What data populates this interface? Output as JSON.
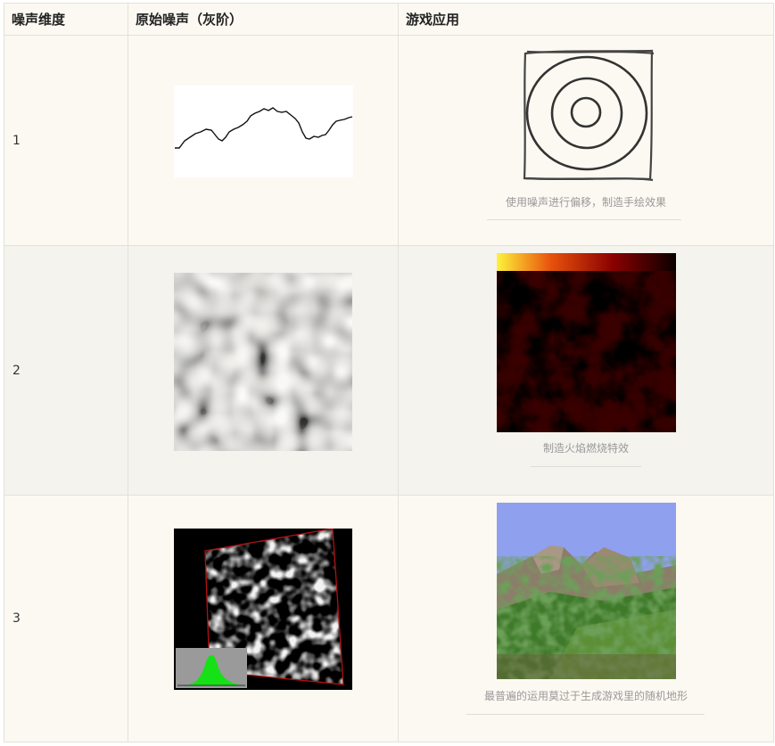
{
  "headers": [
    "噪声维度",
    "原始噪声（灰阶）",
    "游戏应用"
  ],
  "rows": [
    {
      "dim": "1",
      "caption": "使用噪声进行偏移，制造手绘效果"
    },
    {
      "dim": "2",
      "caption": "制造火焰燃烧特效"
    },
    {
      "dim": "3",
      "caption": "最普遍的运用莫过于生成游戏里的随机地形"
    }
  ]
}
